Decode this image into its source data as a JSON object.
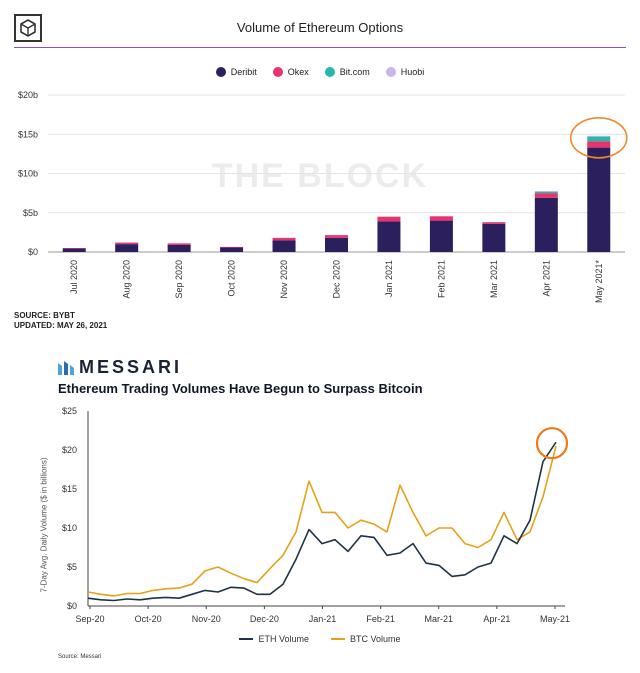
{
  "chart_data": [
    {
      "type": "bar",
      "stacked": true,
      "title": "Volume of Ethereum Options",
      "watermark": "THE BLOCK",
      "categories": [
        "Jul 2020",
        "Aug 2020",
        "Sep 2020",
        "Oct 2020",
        "Nov 2020",
        "Dec 2020",
        "Jan 2021",
        "Feb 2021",
        "Mar 2021",
        "Apr 2021",
        "May 2021*"
      ],
      "series": [
        {
          "name": "Deribit",
          "color": "#2c1f5e",
          "values": [
            0.45,
            1.0,
            0.9,
            0.6,
            1.5,
            1.8,
            3.9,
            4.0,
            3.6,
            6.9,
            13.3
          ]
        },
        {
          "name": "Okex",
          "color": "#e8336d",
          "values": [
            0.05,
            0.2,
            0.2,
            0.05,
            0.3,
            0.35,
            0.6,
            0.55,
            0.2,
            0.6,
            0.8
          ]
        },
        {
          "name": "Bit.com",
          "color": "#26b8a8",
          "values": [
            0,
            0,
            0,
            0,
            0,
            0,
            0,
            0,
            0,
            0.2,
            0.6
          ]
        },
        {
          "name": "Huobi",
          "color": "#c8b8ea",
          "values": [
            0,
            0,
            0,
            0,
            0,
            0,
            0,
            0,
            0,
            0.05,
            0.1
          ]
        }
      ],
      "yticks": [
        "$0",
        "$5b",
        "$10b",
        "$15b",
        "$20b"
      ],
      "ylim": [
        0,
        20
      ],
      "legend": "top-center",
      "highlight_category": "May 2021*",
      "source_lines": [
        "SOURCE: BYBT",
        "UPDATED: MAY 26, 2021"
      ]
    },
    {
      "type": "line",
      "brand": "MESSARI",
      "title": "Ethereum Trading Volumes Have Begun to Surpass Bitcoin",
      "ylabel": "7-Day Avg. Daily Volume ($ in billions)",
      "ylim": [
        0,
        25
      ],
      "yticks": [
        "$0",
        "$5",
        "$10",
        "$15",
        "$20",
        "$25"
      ],
      "xticks": [
        "Sep-20",
        "Oct-20",
        "Nov-20",
        "Dec-20",
        "Jan-21",
        "Feb-21",
        "Mar-21",
        "Apr-21",
        "May-21"
      ],
      "x_weeks": [
        0,
        1,
        2,
        3,
        4,
        5,
        6,
        7,
        8,
        9,
        10,
        11,
        12,
        13,
        14,
        15,
        16,
        17,
        18,
        19,
        20,
        21,
        22,
        23,
        24,
        25,
        26,
        27,
        28,
        29,
        30,
        31,
        32,
        33,
        34,
        35,
        36
      ],
      "series": [
        {
          "name": "ETH Volume",
          "color": "#1f3347",
          "values": [
            1.0,
            0.8,
            0.7,
            0.9,
            0.8,
            1.0,
            1.1,
            1.0,
            1.5,
            2.0,
            1.8,
            2.4,
            2.3,
            1.5,
            1.5,
            2.8,
            6.0,
            9.8,
            8.0,
            8.5,
            7.0,
            9.0,
            8.8,
            6.5,
            6.8,
            8.0,
            5.5,
            5.2,
            3.8,
            4.0,
            5.0,
            5.5,
            9.0,
            8.0,
            11.0,
            18.5,
            21.0
          ]
        },
        {
          "name": "BTC Volume",
          "color": "#e3a21a",
          "values": [
            1.8,
            1.5,
            1.3,
            1.6,
            1.6,
            2.0,
            2.2,
            2.3,
            2.8,
            4.5,
            5.0,
            4.2,
            3.5,
            3.0,
            4.8,
            6.5,
            9.5,
            16.0,
            12.0,
            12.0,
            10.0,
            11.0,
            10.5,
            9.5,
            15.5,
            12.0,
            9.0,
            10.0,
            10.0,
            8.0,
            7.5,
            8.5,
            12.0,
            8.5,
            9.5,
            14.0,
            20.5
          ]
        }
      ],
      "legend": "bottom-center",
      "highlight_point": {
        "series": "ETH Volume",
        "x": 36
      },
      "source": "Source: Messari"
    }
  ]
}
